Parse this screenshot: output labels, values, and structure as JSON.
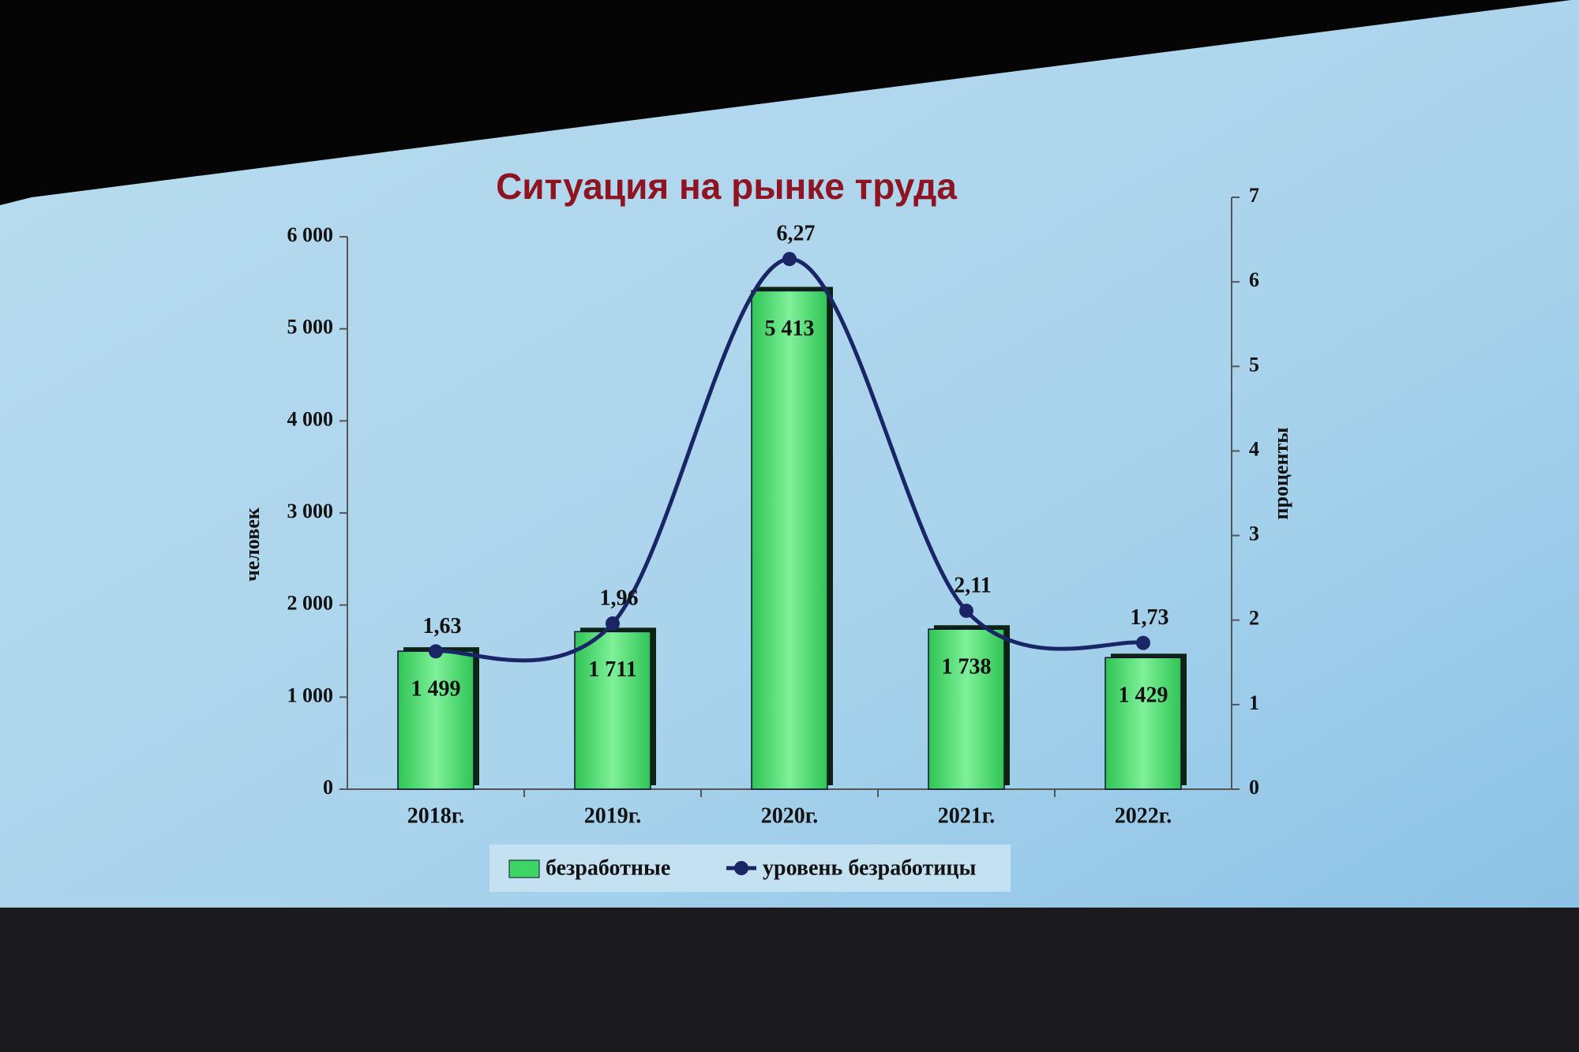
{
  "chart_data": {
    "type": "bar_line",
    "title": "Ситуация на рынке труда",
    "y_label": "человек",
    "y2_label": "проценты",
    "categories": [
      "2018г.",
      "2019г.",
      "2020г.",
      "2021г.",
      "2022г."
    ],
    "series": [
      {
        "name": "безработные",
        "type": "bar",
        "color": "#3fd466",
        "values": [
          1499,
          1711,
          5413,
          1738,
          1429
        ],
        "value_labels": [
          "1 499",
          "1 711",
          "5 413",
          "1 738",
          "1 429"
        ]
      },
      {
        "name": "уровень безработицы",
        "type": "line",
        "axis": "y2",
        "color": "#1a2566",
        "values": [
          1.63,
          1.96,
          6.27,
          2.11,
          1.73
        ],
        "value_labels": [
          "1,63",
          "1,96",
          "6,27",
          "2,11",
          "1,73"
        ]
      }
    ],
    "ylim": [
      0,
      6000
    ],
    "yticks": [
      0,
      {
        "value": 1000,
        "label": "1 000"
      },
      {
        "value": 2000,
        "label": "2 000"
      },
      {
        "value": 3000,
        "label": "3 000"
      },
      {
        "value": 4000,
        "label": "4 000"
      },
      {
        "value": 5000,
        "label": "5 000"
      },
      {
        "value": 6000,
        "label": "6 000"
      }
    ],
    "y2lim": [
      0,
      7
    ],
    "y2ticks": [
      0,
      1,
      2,
      3,
      4,
      5,
      6,
      7
    ]
  }
}
